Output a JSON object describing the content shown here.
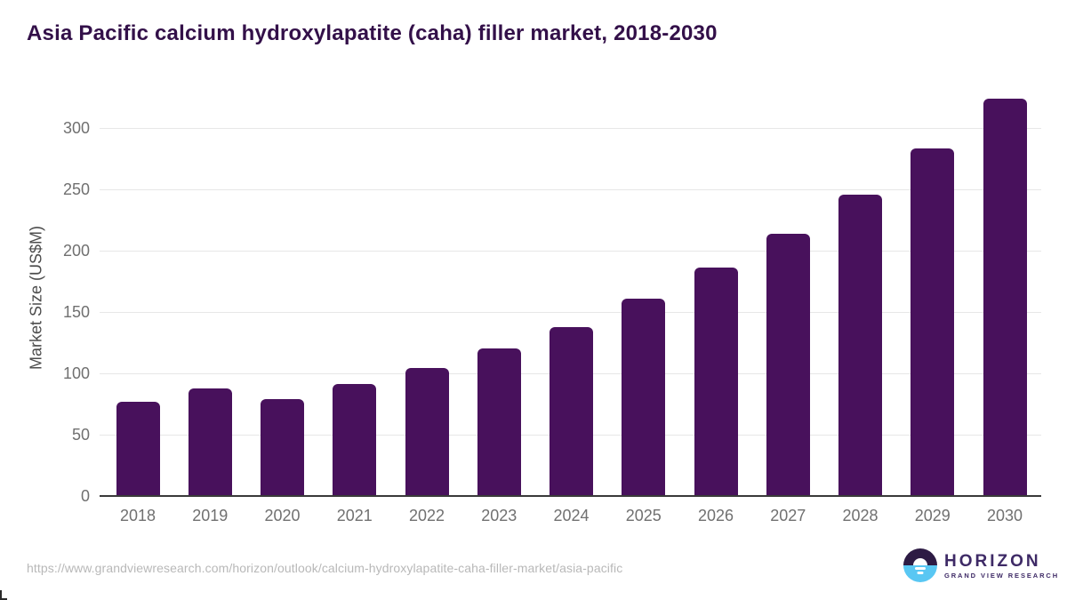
{
  "page": {
    "title": "Asia Pacific calcium hydroxylapatite (caha) filler market, 2018-2030"
  },
  "chart_data": {
    "type": "bar",
    "title": "Asia Pacific calcium hydroxylapatite (caha) filler market, 2018-2030",
    "categories": [
      "2018",
      "2019",
      "2020",
      "2021",
      "2022",
      "2023",
      "2024",
      "2025",
      "2026",
      "2027",
      "2028",
      "2029",
      "2030"
    ],
    "values": [
      77,
      88,
      79,
      91,
      104,
      120,
      138,
      161,
      186,
      214,
      246,
      283,
      324
    ],
    "xlabel": "",
    "ylabel": "Market Size (US$M)",
    "yticks": [
      0,
      50,
      100,
      150,
      200,
      250,
      300
    ],
    "ylim": [
      0,
      335
    ],
    "grid": true,
    "legend": false,
    "bar_color": "#48115c"
  },
  "colors": {
    "bar": "#48115c",
    "title_text": "#331049",
    "axis_tick_text": "#707070",
    "axis_line": "#3a3a3a",
    "gridline": "#e7e7e7",
    "url_text": "#b8b8b8",
    "logo_purple": "#2d1b44",
    "logo_blue": "#59c7f3",
    "logo_text": "#3e2a66"
  },
  "footer": {
    "source_url": "https://www.grandviewresearch.com/horizon/outlook/calcium-hydroxylapatite-caha-filler-market/asia-pacific"
  },
  "logo": {
    "title": "HORIZON",
    "subtitle": "GRAND VIEW RESEARCH"
  }
}
